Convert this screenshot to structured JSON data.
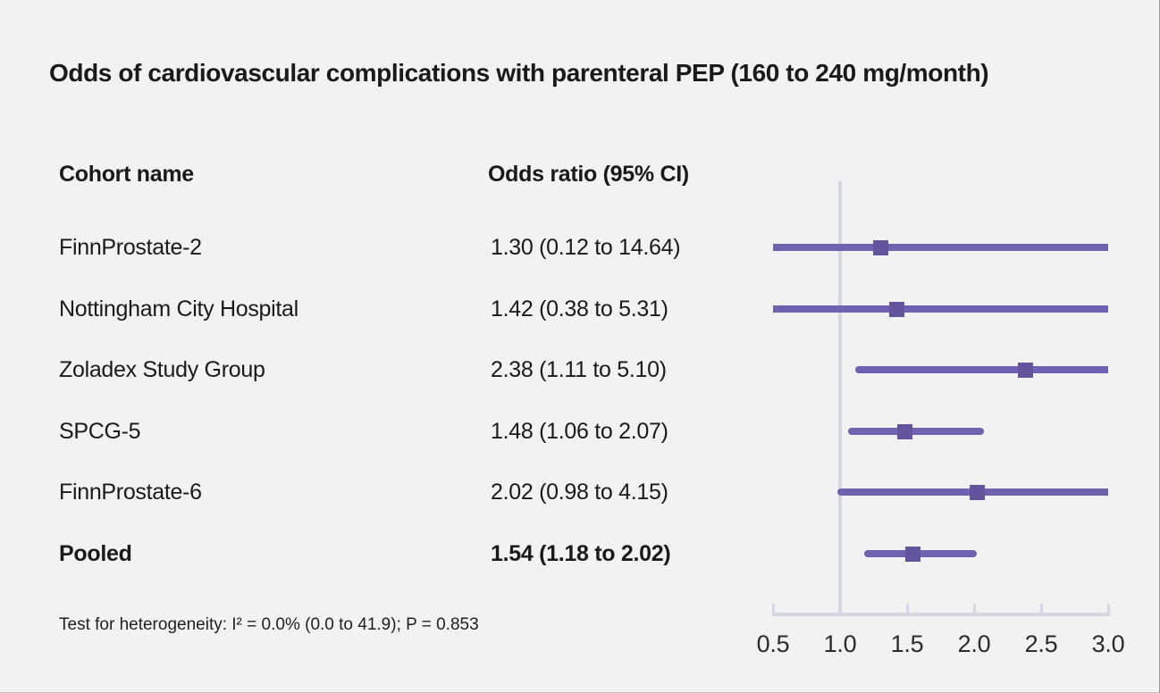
{
  "title": "Odds of cardiovascular complications with parenteral PEP (160 to 240 mg/month)",
  "columns": {
    "cohort": "Cohort name",
    "odds_ratio": "Odds ratio (95% CI)"
  },
  "footnote": "Test for heterogeneity: I² = 0.0% (0.0 to 41.9); P = 0.853",
  "colors": {
    "background": "#f2f2f2",
    "ci_line": "#6f62b0",
    "marker": "#63549e",
    "axis": "#d5d8e0",
    "text": "#1a1a1a"
  },
  "chart_data": {
    "type": "forest",
    "title": "Odds of cardiovascular complications with parenteral PEP (160 to 240 mg/month)",
    "xlim": [
      0.5,
      3.0
    ],
    "x_ticks": [
      "0.5",
      "1.0",
      "1.5",
      "2.0",
      "2.5",
      "3.0"
    ],
    "x_tick_values": [
      0.5,
      1.0,
      1.5,
      2.0,
      2.5,
      3.0
    ],
    "reference_line": 1.0,
    "legend_position": "none",
    "grid": false,
    "rows": [
      {
        "cohort": "FinnProstate-2",
        "label": "1.30 (0.12 to 14.64)",
        "or": 1.3,
        "ci_low": 0.12,
        "ci_high": 14.64,
        "bold": false
      },
      {
        "cohort": "Nottingham City Hospital",
        "label": "1.42 (0.38 to 5.31)",
        "or": 1.42,
        "ci_low": 0.38,
        "ci_high": 5.31,
        "bold": false
      },
      {
        "cohort": "Zoladex Study Group",
        "label": "2.38 (1.11 to 5.10)",
        "or": 2.38,
        "ci_low": 1.11,
        "ci_high": 5.1,
        "bold": false
      },
      {
        "cohort": "SPCG-5",
        "label": "1.48 (1.06 to 2.07)",
        "or": 1.48,
        "ci_low": 1.06,
        "ci_high": 2.07,
        "bold": false
      },
      {
        "cohort": "FinnProstate-6",
        "label": "2.02 (0.98 to 4.15)",
        "or": 2.02,
        "ci_low": 0.98,
        "ci_high": 4.15,
        "bold": false
      },
      {
        "cohort": "Pooled",
        "label": "1.54 (1.18 to 2.02)",
        "or": 1.54,
        "ci_low": 1.18,
        "ci_high": 2.02,
        "bold": true
      }
    ]
  }
}
